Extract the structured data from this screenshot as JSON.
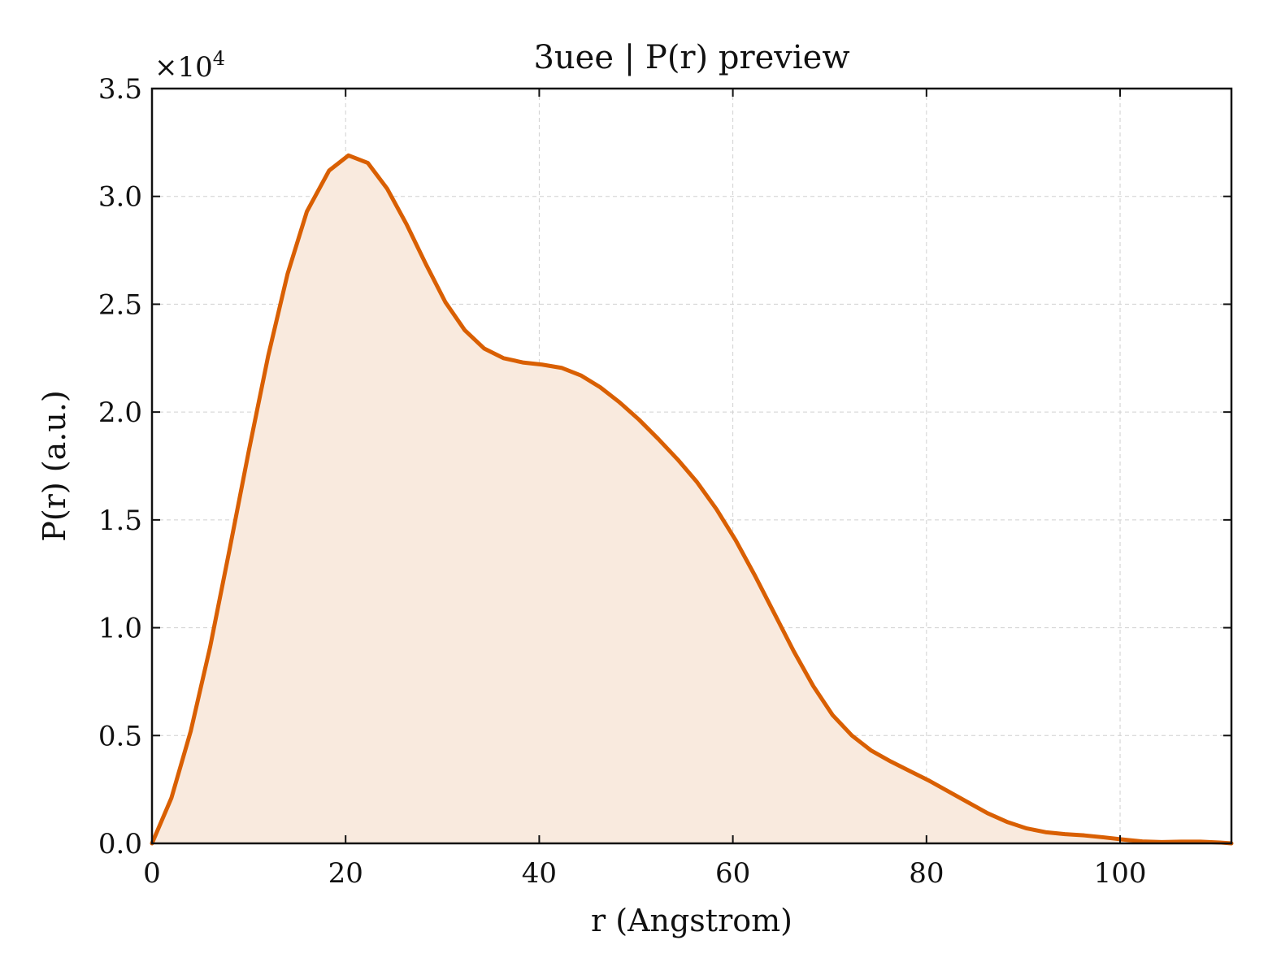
{
  "chart_data": {
    "type": "area",
    "title": "3uee | P(r) preview",
    "xlabel": "r (Angstrom)",
    "ylabel": "P(r) (a.u.)",
    "y_multiplier": "×10",
    "y_multiplier_exp": "4",
    "xlim": [
      0,
      111.5
    ],
    "ylim": [
      0,
      35000
    ],
    "xticks": [
      0,
      20,
      40,
      60,
      80,
      100
    ],
    "xtick_labels": [
      "0",
      "20",
      "40",
      "60",
      "80",
      "100"
    ],
    "yticks": [
      0,
      5000,
      10000,
      15000,
      20000,
      25000,
      30000,
      35000
    ],
    "ytick_labels": [
      "0.0",
      "0.5",
      "1.0",
      "1.5",
      "2.0",
      "2.5",
      "3.0",
      "3.5"
    ],
    "grid": true,
    "legend": "none",
    "line_color": "#d95f02",
    "fill_color": "#f9eade",
    "series": [
      {
        "x": [
          0,
          2,
          4,
          6,
          8,
          10,
          12,
          14,
          16,
          18.3,
          20.3,
          22.3,
          24.3,
          26.3,
          28.3,
          30.3,
          32.3,
          34.3,
          36.3,
          38.3,
          40.3,
          42.3,
          44.3,
          46.3,
          48.3,
          50.3,
          52.3,
          54.3,
          56.3,
          58.3,
          60.3,
          62.3,
          64.3,
          66.3,
          68.3,
          70.3,
          72.3,
          74.3,
          76.3,
          78.3,
          80.3,
          82.3,
          84.3,
          86.3,
          88.3,
          90.3,
          92.3,
          94.3,
          96.3,
          98.3,
          100.3,
          102.3,
          104.3,
          106.3,
          108.3,
          110.3,
          111.5
        ],
        "y": [
          0,
          2100,
          5200,
          9100,
          13600,
          18200,
          22600,
          26400,
          29300,
          31200,
          31900,
          31550,
          30350,
          28700,
          26850,
          25100,
          23800,
          22950,
          22500,
          22300,
          22200,
          22050,
          21700,
          21150,
          20450,
          19650,
          18750,
          17800,
          16750,
          15500,
          14050,
          12400,
          10650,
          8900,
          7300,
          5950,
          5000,
          4300,
          3800,
          3350,
          2900,
          2400,
          1900,
          1400,
          1000,
          700,
          520,
          430,
          370,
          280,
          180,
          90,
          60,
          80,
          80,
          40,
          0
        ]
      }
    ]
  }
}
